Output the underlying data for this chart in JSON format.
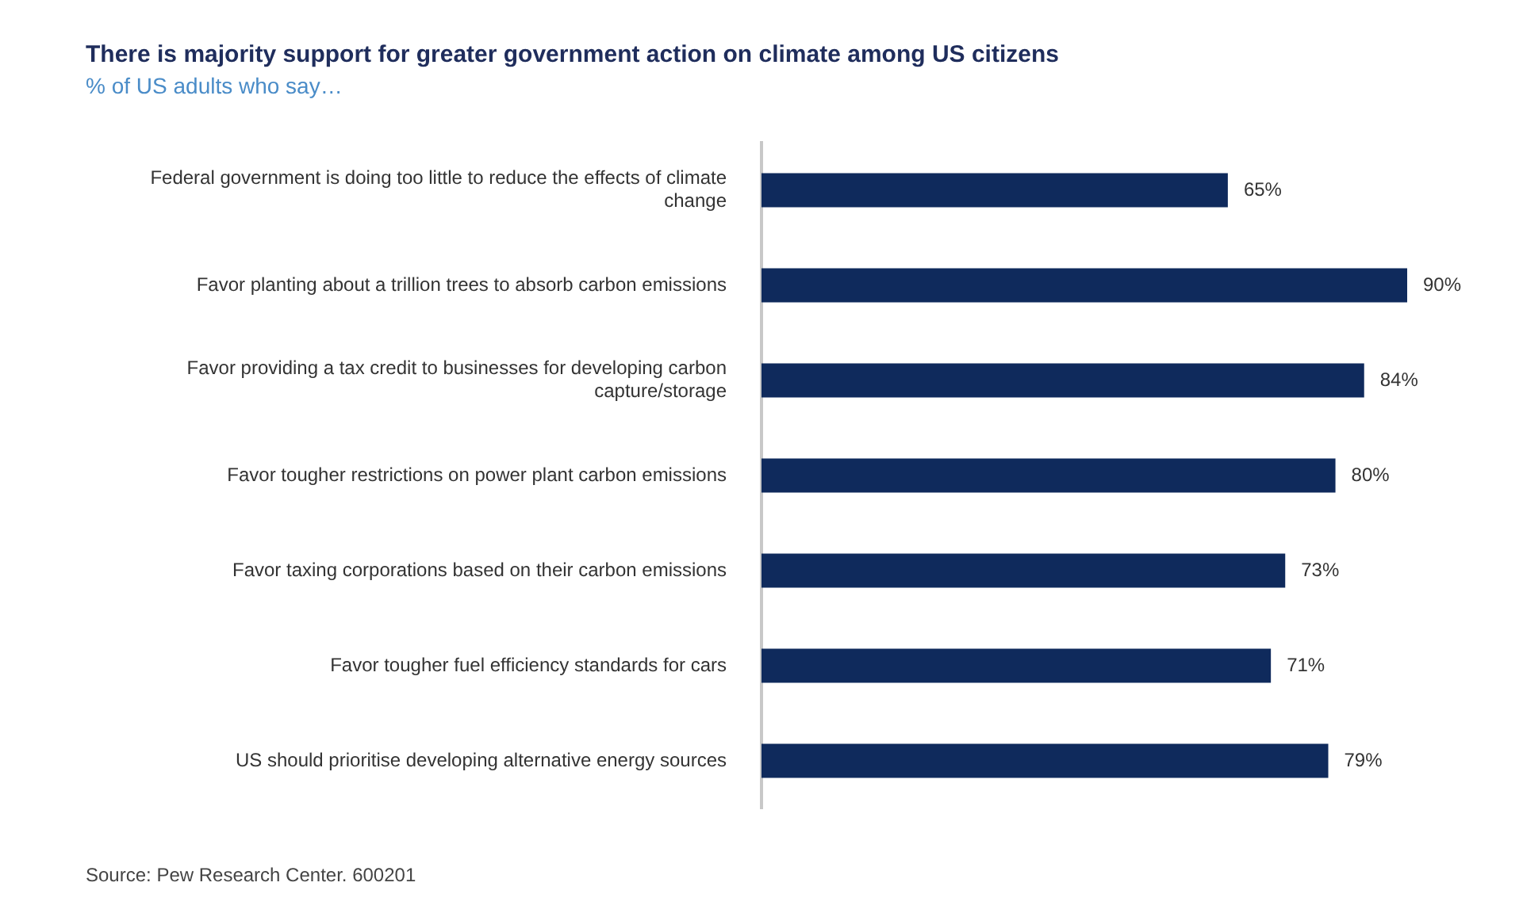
{
  "chart_data": {
    "type": "bar",
    "orientation": "horizontal",
    "title": "There is majority support for greater government action on climate among US citizens",
    "subtitle": "% of US adults who say…",
    "categories": [
      "Federal government is doing too little to reduce the effects of climate change",
      "Favor planting about a trillion trees to absorb carbon emissions",
      "Favor providing a tax credit to businesses for developing carbon capture/storage",
      "Favor tougher restrictions on power plant carbon emissions",
      "Favor taxing corporations based on their carbon emissions",
      "Favor tougher fuel efficiency standards for cars",
      "US should prioritise developing alternative energy sources"
    ],
    "values": [
      65,
      90,
      84,
      80,
      73,
      71,
      79
    ],
    "value_labels": [
      "65%",
      "90%",
      "84%",
      "80%",
      "73%",
      "71%",
      "79%"
    ],
    "color": "#0f2a5c",
    "legend": false,
    "annotations": [
      "Source: Pew Research Center. 600201"
    ]
  }
}
